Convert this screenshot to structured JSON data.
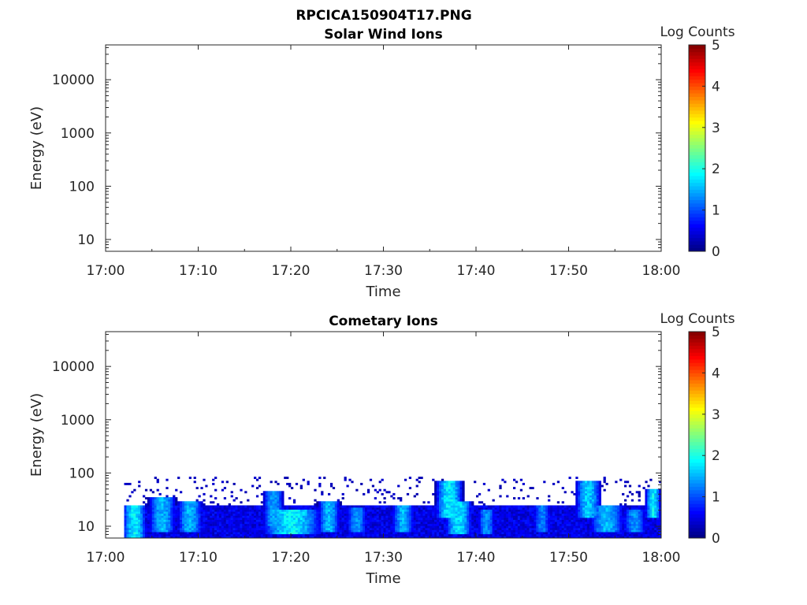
{
  "figure": {
    "title": "RPCICA150904T17.PNG"
  },
  "chart_data": [
    {
      "type": "heatmap",
      "title": "Solar Wind Ions",
      "xlabel": "Time",
      "ylabel": "Energy (eV)",
      "x_ticks": [
        "17:00",
        "17:10",
        "17:20",
        "17:30",
        "17:40",
        "17:50",
        "18:00"
      ],
      "y_ticks": [
        "10",
        "100",
        "1000",
        "10000"
      ],
      "y_scale": "log",
      "xlim": [
        "17:00",
        "18:00"
      ],
      "ylim": [
        6,
        45000
      ],
      "colorbar": {
        "label": "Log Counts",
        "ticks": [
          "0",
          "1",
          "2",
          "3",
          "4",
          "5"
        ],
        "range": [
          0,
          5
        ],
        "colormap": "jet"
      },
      "blobs": []
    },
    {
      "type": "heatmap",
      "title": "Cometary Ions",
      "xlabel": "Time",
      "ylabel": "Energy (eV)",
      "x_ticks": [
        "17:00",
        "17:10",
        "17:20",
        "17:30",
        "17:40",
        "17:50",
        "18:00"
      ],
      "y_ticks": [
        "10",
        "100",
        "1000",
        "10000"
      ],
      "y_scale": "log",
      "xlim": [
        "17:00",
        "18:00"
      ],
      "ylim": [
        6,
        45000
      ],
      "colorbar": {
        "label": "Log Counts",
        "ticks": [
          "0",
          "1",
          "2",
          "3",
          "4",
          "5"
        ],
        "range": [
          0,
          5
        ],
        "colormap": "jet"
      },
      "data_start": "17:02",
      "band_top_eV": 25,
      "sparse_top_eV": 85,
      "blobs": [
        {
          "t": "17:03",
          "w": 1.4,
          "emin": 6,
          "emax": 25,
          "level": 1.9
        },
        {
          "t": "17:06",
          "w": 1.6,
          "emin": 8,
          "emax": 35,
          "level": 1.6
        },
        {
          "t": "17:09",
          "w": 1.5,
          "emin": 8,
          "emax": 30,
          "level": 1.6
        },
        {
          "t": "17:18",
          "w": 1.2,
          "emin": 10,
          "emax": 45,
          "level": 1.5
        },
        {
          "t": "17:20",
          "w": 3.5,
          "emin": 7,
          "emax": 20,
          "level": 1.9
        },
        {
          "t": "17:24",
          "w": 1.3,
          "emin": 8,
          "emax": 30,
          "level": 1.6
        },
        {
          "t": "17:27",
          "w": 1.2,
          "emin": 8,
          "emax": 22,
          "level": 1.4
        },
        {
          "t": "17:32",
          "w": 1.3,
          "emin": 8,
          "emax": 25,
          "level": 1.6
        },
        {
          "t": "17:37",
          "w": 1.6,
          "emin": 15,
          "emax": 70,
          "level": 1.9
        },
        {
          "t": "17:38",
          "w": 1.6,
          "emin": 7,
          "emax": 30,
          "level": 1.8
        },
        {
          "t": "17:41",
          "w": 1.0,
          "emin": 7,
          "emax": 20,
          "level": 1.4
        },
        {
          "t": "17:47",
          "w": 1.0,
          "emin": 8,
          "emax": 25,
          "level": 1.3
        },
        {
          "t": "17:52",
          "w": 1.5,
          "emin": 15,
          "emax": 70,
          "level": 1.7
        },
        {
          "t": "17:54",
          "w": 2.0,
          "emin": 8,
          "emax": 25,
          "level": 1.6
        },
        {
          "t": "17:57",
          "w": 1.3,
          "emin": 8,
          "emax": 20,
          "level": 1.4
        },
        {
          "t": "17:59",
          "w": 0.9,
          "emin": 15,
          "emax": 50,
          "level": 1.9
        }
      ]
    }
  ]
}
